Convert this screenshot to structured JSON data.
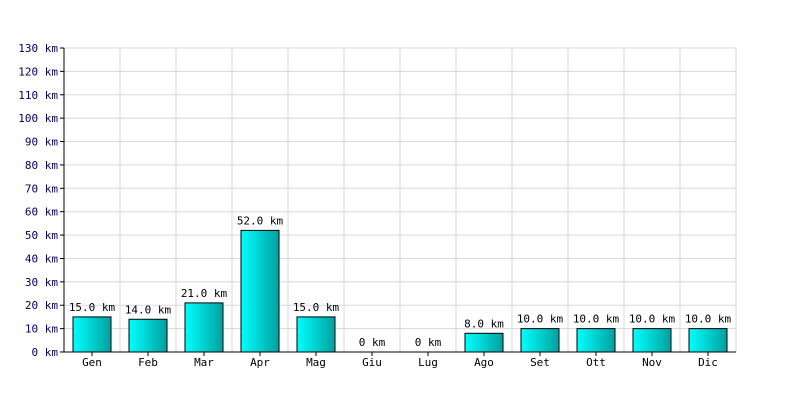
{
  "chart_data": {
    "type": "bar",
    "title": "",
    "xlabel": "",
    "ylabel": "",
    "unit": "km",
    "ylim": [
      0,
      130
    ],
    "ytick_step": 10,
    "grid": true,
    "categories": [
      "Gen",
      "Feb",
      "Mar",
      "Apr",
      "Mag",
      "Giu",
      "Lug",
      "Ago",
      "Set",
      "Ott",
      "Nov",
      "Dic"
    ],
    "values": [
      15.0,
      14.0,
      21.0,
      52.0,
      15.0,
      0,
      0,
      8.0,
      10.0,
      10.0,
      10.0,
      10.0
    ],
    "value_labels": [
      "15.0 km",
      "14.0 km",
      "21.0 km",
      "52.0 km",
      "15.0 km",
      "0 km",
      "0 km",
      "8.0 km",
      "10.0 km",
      "10.0 km",
      "10.0 km",
      "10.0 km"
    ],
    "ytick_labels": [
      "0 km",
      "10 km",
      "20 km",
      "30 km",
      "40 km",
      "50 km",
      "60 km",
      "70 km",
      "80 km",
      "90 km",
      "100 km",
      "110 km",
      "120 km",
      "130 km"
    ],
    "colors": {
      "bar_light": "#00ffff",
      "bar_dark": "#00a0a0",
      "bar_outline": "#000000",
      "grid": "#d8d8e0",
      "axis": "#000000",
      "text": "#000000",
      "ytick_text": "#000060"
    }
  }
}
